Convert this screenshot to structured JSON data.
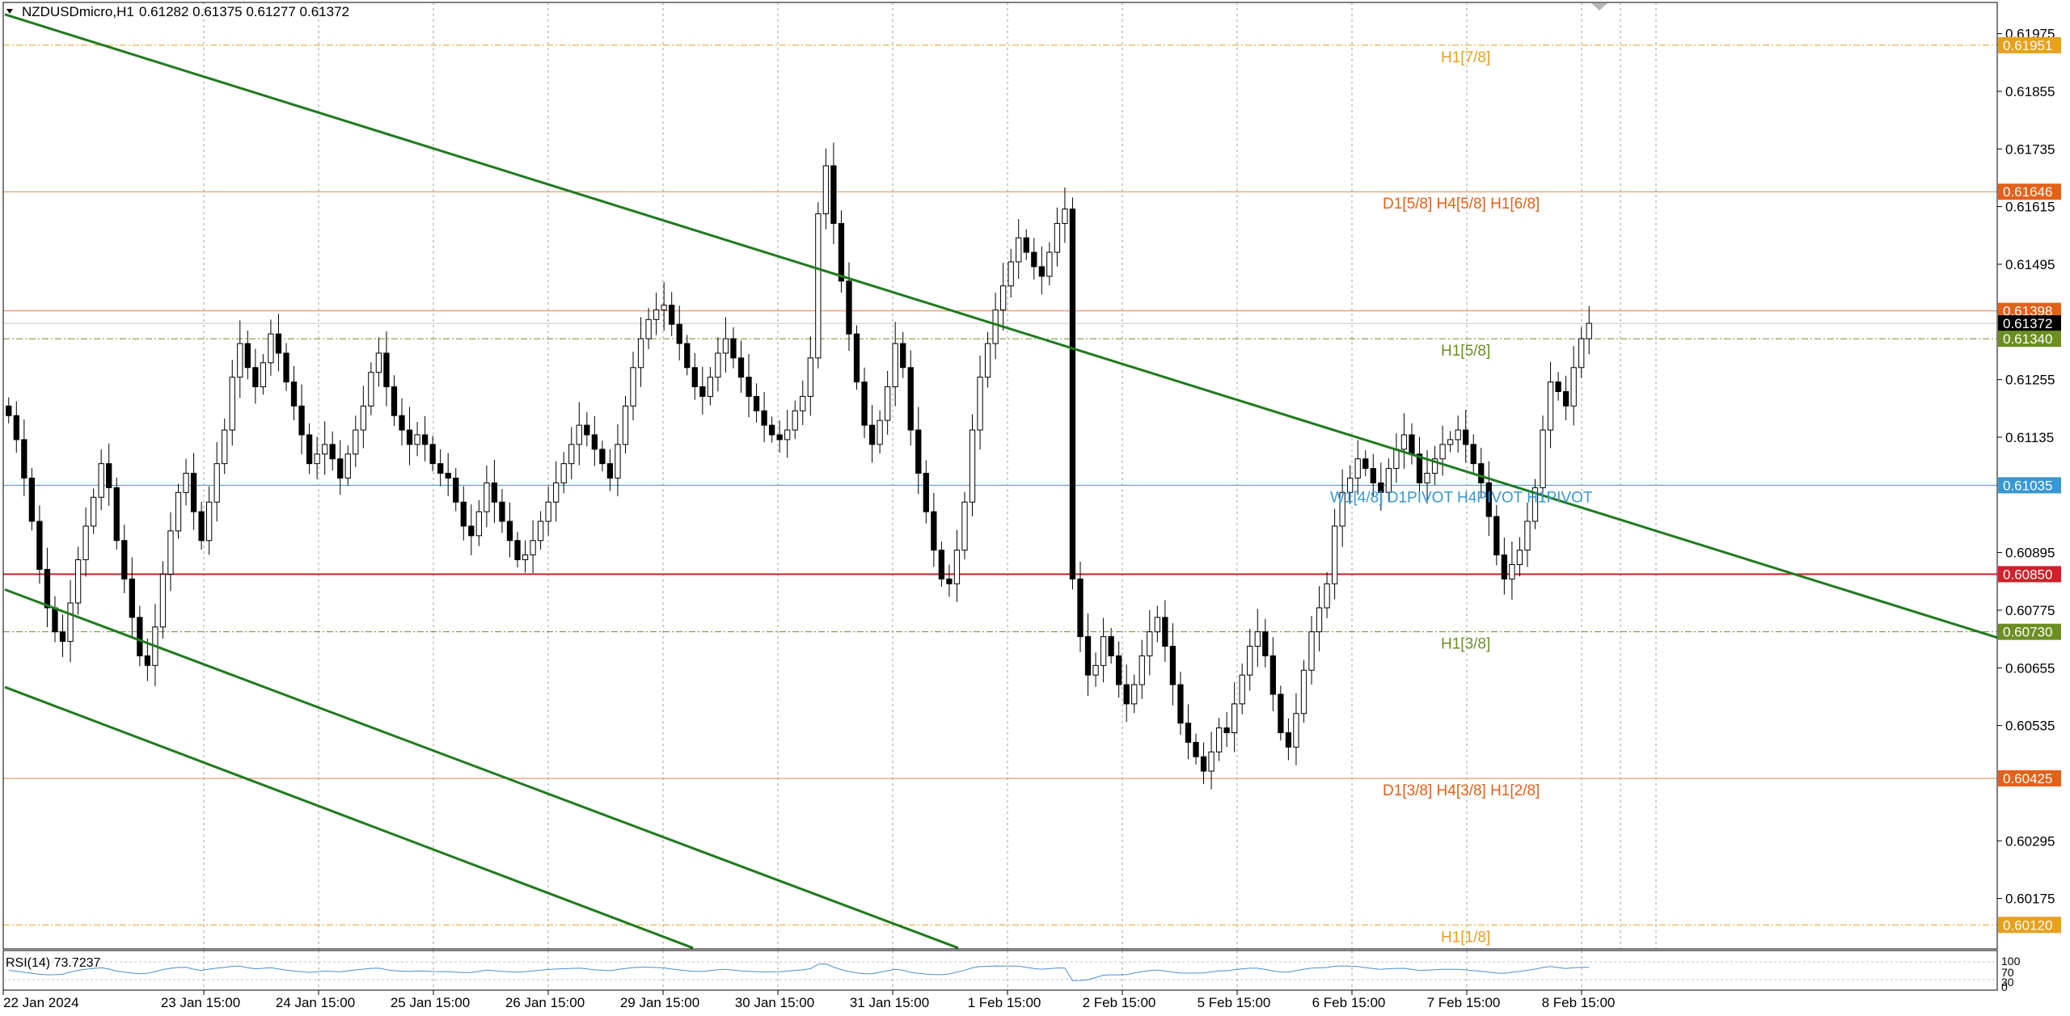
{
  "header": {
    "symbol": "NZDUSDmicro,H1",
    "ohlc": "0.61282 0.61375 0.61277 0.61372"
  },
  "rsi": {
    "label": "RSI(14) 73.7237",
    "scale": [
      "100",
      "70",
      "30",
      "0"
    ]
  },
  "colors": {
    "trendline": "#1e7b1e",
    "pivot_blue": "#3a97d6",
    "red_line": "#d0212a",
    "orange": "#e4611a",
    "amber": "#e8a020",
    "olive": "#6b8e23",
    "grid": "#a0a0a0"
  },
  "chart_data": {
    "type": "candlestick",
    "symbol": "NZDUSDmicro",
    "timeframe": "H1",
    "grid": true,
    "ylim": [
      0.6007,
      0.6204
    ],
    "y_ticks": [
      "0.61975",
      "0.61855",
      "0.61735",
      "0.61615",
      "0.61495",
      "0.61255",
      "0.61135",
      "0.60895",
      "0.60775",
      "0.60655",
      "0.60535",
      "0.60295",
      "0.60175"
    ],
    "x_tick_labels": [
      "22 Jan 2024",
      "23 Jan 15:00",
      "24 Jan 15:00",
      "25 Jan 15:00",
      "26 Jan 15:00",
      "29 Jan 15:00",
      "30 Jan 15:00",
      "31 Jan 15:00",
      "1 Feb 15:00",
      "2 Feb 15:00",
      "5 Feb 15:00",
      "6 Feb 15:00",
      "7 Feb 15:00",
      "8 Feb 15:00"
    ],
    "levels": [
      {
        "price": 0.61951,
        "label": "H1[7/8]",
        "tag": "0.61951",
        "kind": "amber"
      },
      {
        "price": 0.61646,
        "label": "D1[5/8] H4[5/8] H1[6/8]",
        "tag": "0.61646",
        "kind": "orange"
      },
      {
        "price": 0.61398,
        "label": "",
        "tag": "0.61398",
        "kind": "orange"
      },
      {
        "price": 0.61372,
        "label": "",
        "tag": "0.61372",
        "kind": "current"
      },
      {
        "price": 0.6134,
        "label": "H1[5/8]",
        "tag": "0.61340",
        "kind": "olive"
      },
      {
        "price": 0.61035,
        "label": "W1[4/8] D1PIVOT H4PIVOT H1PIVOT",
        "tag": "0.61035",
        "kind": "blue"
      },
      {
        "price": 0.6085,
        "label": "",
        "tag": "0.60850",
        "kind": "red"
      },
      {
        "price": 0.6073,
        "label": "H1[3/8]",
        "tag": "0.60730",
        "kind": "olive"
      },
      {
        "price": 0.60425,
        "label": "D1[3/8] H4[3/8] H1[2/8]",
        "tag": "0.60425",
        "kind": "orange"
      },
      {
        "price": 0.6012,
        "label": "H1[1/8]",
        "tag": "0.60120",
        "kind": "amber"
      }
    ],
    "trendlines": [
      {
        "from": [
          0,
          0.62015
        ],
        "to": [
          188,
          0.60718
        ]
      },
      {
        "from": [
          0,
          0.60818
        ],
        "to": [
          95,
          0.60072
        ]
      },
      {
        "from": [
          0,
          0.60615
        ],
        "to": [
          70,
          0.60072
        ]
      }
    ],
    "bars_close": [
      0.6118,
      0.6113,
      0.6105,
      0.6096,
      0.6086,
      0.6078,
      0.6073,
      0.6071,
      0.6079,
      0.6088,
      0.6095,
      0.6101,
      0.6108,
      0.6103,
      0.6092,
      0.6084,
      0.6076,
      0.6068,
      0.6066,
      0.6074,
      0.6085,
      0.6094,
      0.6102,
      0.6106,
      0.6098,
      0.6092,
      0.61,
      0.6108,
      0.6115,
      0.6126,
      0.6133,
      0.6128,
      0.6124,
      0.6129,
      0.6135,
      0.6131,
      0.6125,
      0.612,
      0.6114,
      0.6108,
      0.611,
      0.6112,
      0.6109,
      0.6105,
      0.611,
      0.6115,
      0.612,
      0.6127,
      0.6131,
      0.6124,
      0.6118,
      0.6115,
      0.6112,
      0.6114,
      0.6112,
      0.6108,
      0.6106,
      0.6105,
      0.61,
      0.6095,
      0.6093,
      0.6098,
      0.6104,
      0.61,
      0.6096,
      0.6092,
      0.6088,
      0.6089,
      0.6092,
      0.6096,
      0.61,
      0.6104,
      0.6108,
      0.6112,
      0.6116,
      0.6114,
      0.6111,
      0.6108,
      0.6105,
      0.6112,
      0.612,
      0.6128,
      0.6134,
      0.6138,
      0.614,
      0.6141,
      0.6137,
      0.6133,
      0.6128,
      0.6124,
      0.6122,
      0.6126,
      0.6131,
      0.6134,
      0.613,
      0.6126,
      0.6122,
      0.6119,
      0.6116,
      0.6114,
      0.6113,
      0.6115,
      0.6119,
      0.6122,
      0.613,
      0.616,
      0.617,
      0.6158,
      0.6146,
      0.6135,
      0.6125,
      0.6116,
      0.6112,
      0.6117,
      0.6124,
      0.6133,
      0.6128,
      0.6115,
      0.6106,
      0.6098,
      0.609,
      0.6084,
      0.6083,
      0.609,
      0.61,
      0.6115,
      0.6126,
      0.6133,
      0.614,
      0.6145,
      0.615,
      0.6155,
      0.6152,
      0.6149,
      0.6147,
      0.6152,
      0.6158,
      0.6161,
      0.6084,
      0.6072,
      0.6064,
      0.6066,
      0.6072,
      0.6068,
      0.6062,
      0.6058,
      0.6062,
      0.6068,
      0.6073,
      0.6076,
      0.607,
      0.6062,
      0.6054,
      0.605,
      0.6047,
      0.6044,
      0.6048,
      0.6053,
      0.6052,
      0.6058,
      0.6064,
      0.607,
      0.6073,
      0.6068,
      0.606,
      0.6052,
      0.6049,
      0.6056,
      0.6065,
      0.6073,
      0.6078,
      0.6083,
      0.6095,
      0.6102,
      0.6105,
      0.6109,
      0.6107,
      0.6104,
      0.6102,
      0.6107,
      0.6111,
      0.6114,
      0.611,
      0.6104,
      0.6106,
      0.6109,
      0.6112,
      0.6113,
      0.6115,
      0.6112,
      0.6108,
      0.6104,
      0.6097,
      0.6089,
      0.6084,
      0.6087,
      0.609,
      0.6096,
      0.6103,
      0.6115,
      0.6125,
      0.6123,
      0.612,
      0.6128,
      0.6134,
      0.61372
    ]
  }
}
